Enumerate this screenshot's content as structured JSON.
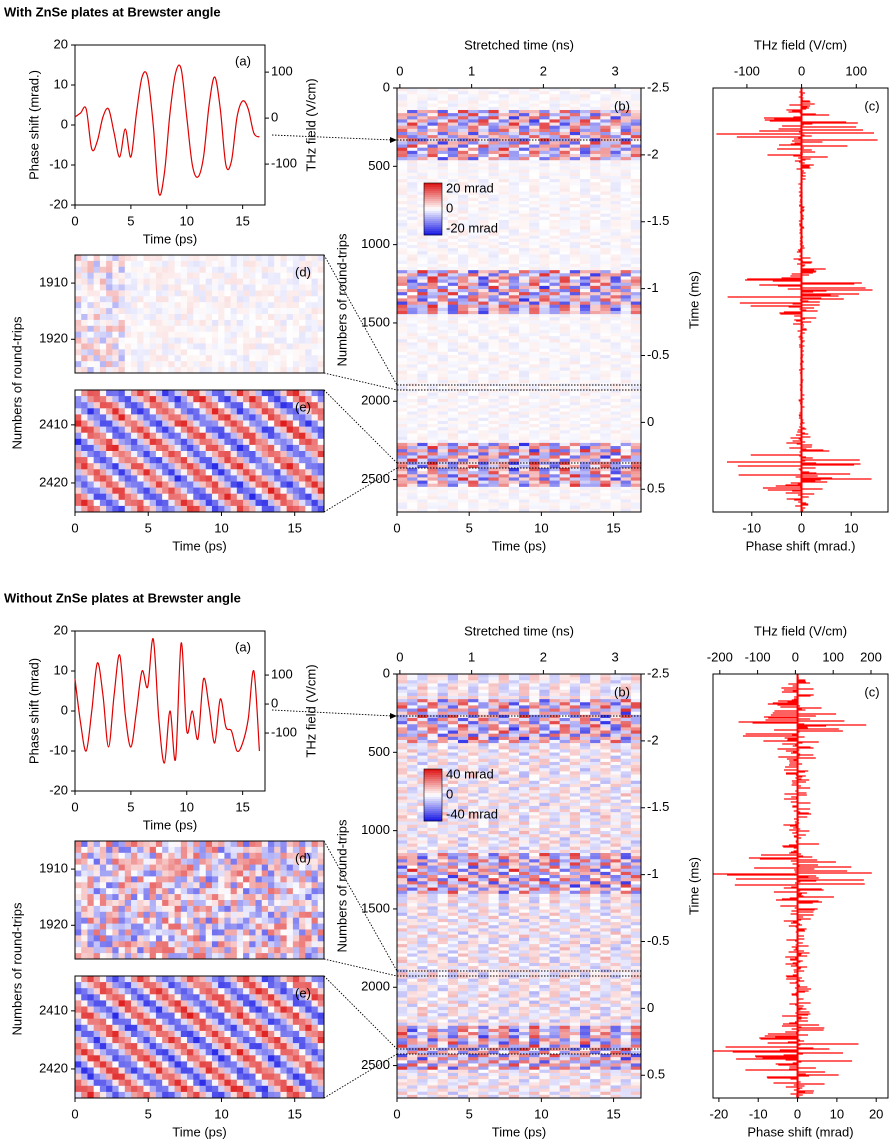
{
  "sections": [
    {
      "title": "With ZnSe plates at Brewster angle",
      "chart_data": [
        {
          "type": "line",
          "panel_label": "(a)",
          "xlabel": "Time (ps)",
          "ylabel": "Phase shift (mrad.)",
          "y2label": "THz field (V/cm)",
          "xlim": [
            0,
            17
          ],
          "xticks": [
            0,
            5,
            10,
            15
          ],
          "ylim": [
            -20,
            20
          ],
          "yticks": [
            -20,
            -10,
            0,
            10,
            20
          ],
          "y2lim": [
            -189,
            159
          ],
          "y2ticks": [
            -100,
            0,
            100
          ],
          "color": "#e00000",
          "x": [
            0,
            0.5,
            1,
            1.5,
            2,
            2.5,
            3,
            3.5,
            4,
            4.5,
            5,
            5.5,
            6,
            6.5,
            7,
            7.5,
            8,
            8.5,
            9,
            9.5,
            10,
            10.5,
            11,
            11.5,
            12,
            12.5,
            13,
            13.5,
            14,
            14.5,
            15,
            15.5,
            16,
            16.5
          ],
          "values": [
            2,
            3,
            4,
            -6,
            -4,
            2,
            4,
            -2,
            -8,
            -1,
            -8,
            3,
            12,
            12,
            0,
            -17,
            -12,
            3,
            13,
            14,
            2,
            -10,
            -13,
            -8,
            5,
            12,
            4,
            -10,
            -9,
            2,
            6,
            4,
            -2,
            -3
          ]
        },
        {
          "type": "heatmap",
          "panel_label": "(d)",
          "ylabel": "Numbers of round-trips",
          "yreverse": true,
          "xlim": [
            0,
            17
          ],
          "ylim": [
            1905,
            1926
          ],
          "yticks": [
            1910,
            1920
          ]
        },
        {
          "type": "heatmap",
          "panel_label": "(e)",
          "xlabel": "Time (ps)",
          "yreverse": true,
          "xlim": [
            0,
            17
          ],
          "xticks": [
            0,
            5,
            10,
            15
          ],
          "ylim": [
            2404,
            2425
          ],
          "yticks": [
            2410,
            2420
          ]
        },
        {
          "type": "heatmap",
          "panel_label": "(b)",
          "xlabel": "Time (ps)",
          "x2label": "Stretched time (ns)",
          "ylabel": "Numbers of round-trips",
          "y2label": "Time (ms)",
          "yreverse": true,
          "xlim": [
            0,
            16.9
          ],
          "xticks": [
            0,
            5,
            10,
            15
          ],
          "x2lim": [
            -0.04,
            3.36
          ],
          "x2ticks": [
            0,
            1,
            2,
            3
          ],
          "ylim": [
            0,
            2707
          ],
          "yticks": [
            0,
            500,
            1000,
            1500,
            2000,
            2500
          ],
          "y2lim": [
            -2.5,
            0.67
          ],
          "y2ticks": [
            -2.5,
            -2,
            -1.5,
            -1,
            -0.5,
            0,
            0.5
          ],
          "colorbar_labels": [
            "20 mrad",
            "0",
            "-20 mrad"
          ]
        },
        {
          "type": "trace",
          "panel_label": "(c)",
          "xlabel": "Phase shift (mrad.)",
          "x2label": "THz field (V/cm)",
          "color": "#ff0000",
          "xlim": [
            -17.8,
            17.4
          ],
          "xticks": [
            -10,
            0,
            10
          ],
          "x2lim": [
            -162,
            158
          ],
          "x2ticks": [
            -100,
            0,
            100
          ]
        }
      ]
    },
    {
      "title": "Without ZnSe plates at Brewster angle",
      "chart_data": [
        {
          "type": "line",
          "panel_label": "(a)",
          "xlabel": "Time (ps)",
          "ylabel": "Phase shift (mrad)",
          "y2label": "THz field (V/cm)",
          "xlim": [
            0,
            17
          ],
          "xticks": [
            0,
            5,
            10,
            15
          ],
          "ylim": [
            -20,
            20
          ],
          "yticks": [
            -20,
            -10,
            0,
            10,
            20
          ],
          "y2lim": [
            -300,
            252
          ],
          "y2ticks": [
            -100,
            0,
            100
          ],
          "color": "#e00000",
          "x": [
            0,
            0.5,
            1,
            1.5,
            2,
            2.5,
            3,
            3.5,
            4,
            4.5,
            5,
            5.5,
            6,
            6.5,
            7,
            7.5,
            8,
            8.5,
            9,
            9.5,
            10,
            10.5,
            11,
            11.5,
            12,
            12.5,
            13,
            13.5,
            14,
            14.5,
            15,
            15.5,
            16,
            16.5
          ],
          "values": [
            8,
            -3,
            -10,
            0,
            12,
            4,
            -9,
            4,
            14,
            -1,
            -9,
            0,
            10,
            6,
            18,
            -2,
            -13,
            0,
            -12,
            17,
            -5,
            0,
            -7,
            8,
            1,
            -8,
            3,
            -4,
            -5,
            -10,
            -8,
            -2,
            10,
            -10
          ]
        },
        {
          "type": "heatmap",
          "panel_label": "(d)",
          "ylabel": "Numbers of round-trips",
          "yreverse": true,
          "xlim": [
            0,
            17
          ],
          "ylim": [
            1905,
            1926
          ],
          "yticks": [
            1910,
            1920
          ]
        },
        {
          "type": "heatmap",
          "panel_label": "(e)",
          "xlabel": "Time (ps)",
          "yreverse": true,
          "xlim": [
            0,
            17
          ],
          "xticks": [
            0,
            5,
            10,
            15
          ],
          "ylim": [
            2404,
            2425
          ],
          "yticks": [
            2410,
            2420
          ]
        },
        {
          "type": "heatmap",
          "panel_label": "(b)",
          "xlabel": "Time (ps)",
          "x2label": "Stretched time (ns)",
          "ylabel": "Numbers of round-trips",
          "y2label": "Time (ms)",
          "yreverse": true,
          "xlim": [
            0,
            16.9
          ],
          "xticks": [
            0,
            5,
            10,
            15
          ],
          "x2lim": [
            -0.04,
            3.36
          ],
          "x2ticks": [
            0,
            1,
            2,
            3
          ],
          "ylim": [
            0,
            2707
          ],
          "yticks": [
            0,
            500,
            1000,
            1500,
            2000,
            2500
          ],
          "y2lim": [
            -2.5,
            0.67
          ],
          "y2ticks": [
            -2.5,
            -2,
            -1.5,
            -1,
            -0.5,
            0,
            0.5
          ],
          "colorbar_labels": [
            "40 mrad",
            "0",
            "-40 mrad"
          ]
        },
        {
          "type": "trace",
          "panel_label": "(c)",
          "xlabel": "Phase shift (mrad)",
          "x2label": "THz field (V/cm)",
          "color": "#ff0000",
          "xlim": [
            -21.5,
            23
          ],
          "xticks": [
            -20,
            -10,
            0,
            10,
            20
          ],
          "x2lim": [
            -218,
            245
          ],
          "x2ticks": [
            -200,
            -100,
            0,
            100,
            200
          ]
        }
      ]
    }
  ]
}
